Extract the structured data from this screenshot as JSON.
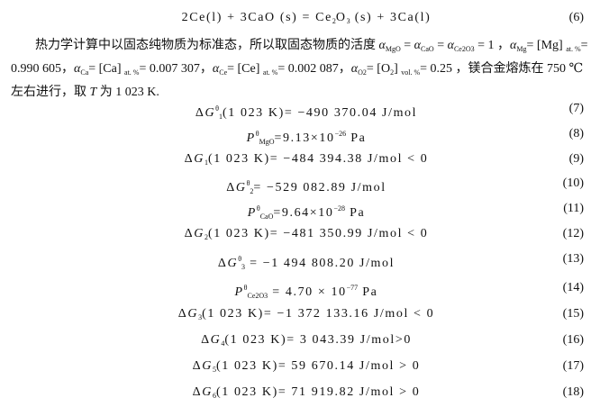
{
  "equations": [
    {
      "parts": [
        {
          "t": "2Ce(l) +   3CaO (s) = Ce"
        },
        {
          "sub": "2"
        },
        {
          "t": "O"
        },
        {
          "sub": "3"
        },
        {
          "t": " (s) +   3Ca(l)"
        }
      ],
      "num": "(6)"
    },
    {
      "parts": [
        {
          "t": "Δ"
        },
        {
          "i": "G"
        },
        {
          "sup": "θ"
        },
        {
          "sub": "1"
        },
        {
          "t": "(1 023 K)= −490 370.04 J/mol"
        }
      ],
      "num": "(7)"
    },
    {
      "parts": [
        {
          "i": "P"
        },
        {
          "sup": "θ"
        },
        {
          "sub": "MgO"
        },
        {
          "t": "=9.13×10"
        },
        {
          "sup": "−26"
        },
        {
          "t": " Pa"
        }
      ],
      "num": "(8)"
    },
    {
      "parts": [
        {
          "t": "Δ"
        },
        {
          "i": "G"
        },
        {
          "sub": "1"
        },
        {
          "t": "(1 023 K)= −484 394.38 J/mol < 0"
        }
      ],
      "num": "(9)"
    },
    {
      "parts": [
        {
          "t": "Δ"
        },
        {
          "i": "G"
        },
        {
          "sup": "θ"
        },
        {
          "sub": "2"
        },
        {
          "t": "= −529 082.89 J/mol"
        }
      ],
      "num": "(10)"
    },
    {
      "parts": [
        {
          "i": "P"
        },
        {
          "sup": "θ"
        },
        {
          "sub": "CaO"
        },
        {
          "t": "=9.64×10"
        },
        {
          "sup": "−28"
        },
        {
          "t": " Pa"
        }
      ],
      "num": "(11)"
    },
    {
      "parts": [
        {
          "t": "Δ"
        },
        {
          "i": "G"
        },
        {
          "sub": "2"
        },
        {
          "t": "(1 023 K)= −481 350.99 J/mol < 0"
        }
      ],
      "num": "(12)"
    },
    {
      "parts": [
        {
          "t": "Δ"
        },
        {
          "i": "G"
        },
        {
          "sup": "θ"
        },
        {
          "sub": "3"
        },
        {
          "t": " = −1 494 808.20 J/mol"
        }
      ],
      "num": "(13)"
    },
    {
      "parts": [
        {
          "i": "P"
        },
        {
          "sup": "θ"
        },
        {
          "sub": "Ce2O3"
        },
        {
          "t": " = 4.70 × 10"
        },
        {
          "sup": "−77"
        },
        {
          "t": " Pa"
        }
      ],
      "num": "(14)"
    },
    {
      "parts": [
        {
          "t": "Δ"
        },
        {
          "i": "G"
        },
        {
          "sub": "3"
        },
        {
          "t": "(1 023 K)= −1 372 133.16 J/mol < 0"
        }
      ],
      "num": "(15)"
    },
    {
      "parts": [
        {
          "t": "Δ"
        },
        {
          "i": "G"
        },
        {
          "sub": "4"
        },
        {
          "t": "(1 023 K)= 3 043.39 J/mol>0"
        }
      ],
      "num": "(16)"
    },
    {
      "parts": [
        {
          "t": "Δ"
        },
        {
          "i": "G"
        },
        {
          "sub": "5"
        },
        {
          "t": "(1 023 K)= 59 670.14 J/mol > 0"
        }
      ],
      "num": "(17)"
    },
    {
      "parts": [
        {
          "t": "Δ"
        },
        {
          "i": "G"
        },
        {
          "sub": "6"
        },
        {
          "t": "(1 023 K)= 71 919.82 J/mol > 0"
        }
      ],
      "num": "(18)"
    }
  ],
  "paragraph": [
    [
      {
        "t": "热力学计算中以固态纯物质为标准态，所以取固态物质的活度 "
      },
      {
        "i": "α"
      },
      {
        "sub": "MgO"
      },
      {
        "t": " = "
      },
      {
        "i": "α"
      },
      {
        "sub": "CaO"
      },
      {
        "t": " = "
      },
      {
        "i": "α"
      },
      {
        "sub": "Ce2O3"
      },
      {
        "t": " = 1 ，"
      },
      {
        "i": "α"
      },
      {
        "sub": "Mg"
      },
      {
        "t": "= [Mg] "
      },
      {
        "sub": "at. %"
      },
      {
        "t": "="
      }
    ],
    [
      {
        "t": "0.990 605，"
      },
      {
        "i": "α"
      },
      {
        "sub": "Ca"
      },
      {
        "t": "= [Ca] "
      },
      {
        "sub": "at. %"
      },
      {
        "t": "= 0.007 307，"
      },
      {
        "i": "α"
      },
      {
        "sub": "Ce"
      },
      {
        "t": "= [Ce] "
      },
      {
        "sub": "at. %"
      },
      {
        "t": "= 0.002 087，"
      },
      {
        "i": "α"
      },
      {
        "sub": "O2"
      },
      {
        "t": "= [O"
      },
      {
        "sub": "2"
      },
      {
        "t": "] "
      },
      {
        "sub": "vol. %"
      },
      {
        "t": "= 0.25 ，镁合金熔炼在 750 ℃"
      }
    ],
    [
      {
        "t": "左右进行，取 "
      },
      {
        "i": "T"
      },
      {
        "t": " 为 1 023 K."
      }
    ]
  ]
}
